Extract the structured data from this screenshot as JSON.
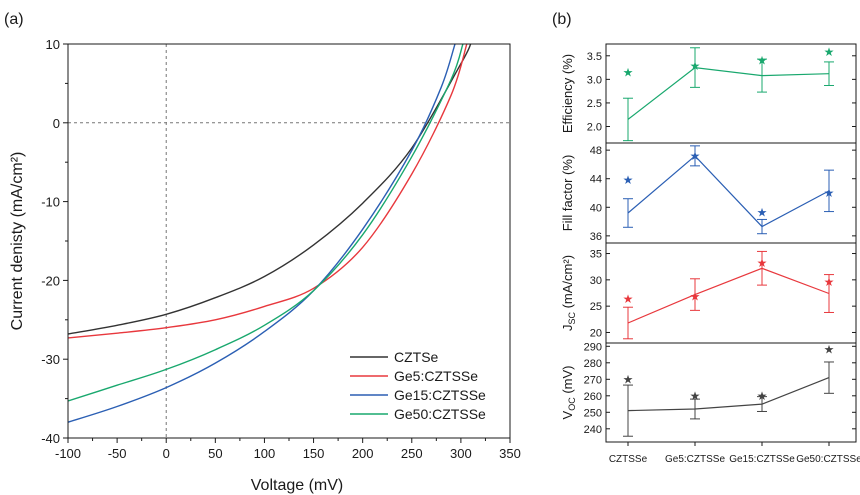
{
  "chart_data": [
    {
      "type": "line",
      "panel_label": "(a)",
      "xlabel": "Voltage (mV)",
      "ylabel": "Current denisty (mA/cm²)",
      "xlim": [
        -100,
        350
      ],
      "ylim": [
        -40,
        10
      ],
      "xticks": [
        -100,
        -50,
        0,
        50,
        100,
        150,
        200,
        250,
        300,
        350
      ],
      "yticks": [
        -40,
        -30,
        -20,
        -10,
        0,
        10
      ],
      "reference_lines": {
        "x": 0,
        "y": 0,
        "style": "dashed"
      },
      "legend_position": "bottom-right",
      "series": [
        {
          "name": "CZTSe",
          "color": "#333333",
          "x": [
            -100,
            -50,
            0,
            50,
            100,
            150,
            200,
            250,
            300,
            310
          ],
          "y": [
            -26.8,
            -25.7,
            -24.3,
            -22.2,
            -19.5,
            -15.5,
            -10.2,
            -3.2,
            7.5,
            10
          ]
        },
        {
          "name": "Ge5:CZTSSe",
          "color": "#e8383d",
          "x": [
            -100,
            -50,
            0,
            50,
            100,
            150,
            200,
            250,
            290,
            306
          ],
          "y": [
            -27.3,
            -26.7,
            -26,
            -25,
            -23.3,
            -21,
            -15.8,
            -6.5,
            3.5,
            10
          ]
        },
        {
          "name": "Ge15:CZTSSe",
          "color": "#2b5fb4",
          "x": [
            -100,
            -50,
            0,
            50,
            100,
            150,
            200,
            250,
            280,
            294
          ],
          "y": [
            -38,
            -36,
            -33.6,
            -30.5,
            -26.5,
            -21.3,
            -13.5,
            -3.5,
            4.5,
            10
          ]
        },
        {
          "name": "Ge50:CZTSSe",
          "color": "#19a86e",
          "x": [
            -100,
            -50,
            0,
            50,
            100,
            150,
            200,
            250,
            290,
            302
          ],
          "y": [
            -35.3,
            -33.3,
            -31.3,
            -28.8,
            -25.7,
            -21.3,
            -14.2,
            -4.3,
            5.5,
            10
          ]
        }
      ]
    },
    {
      "type": "line",
      "panel_label": "(b)",
      "categories": [
        "CZTSSe",
        "Ge5:CZTSSe",
        "Ge15:CZTSSe",
        "Ge50:CZTSSe"
      ],
      "panels": [
        {
          "ylabel": "Efficiency (%)",
          "color": "#19a86e",
          "ylim": [
            1.65,
            3.75
          ],
          "yticks": [
            2.0,
            2.5,
            3.0,
            3.5
          ],
          "tick_labels": [
            "2.0",
            "2.5",
            "3.0",
            "3.5"
          ],
          "mean": [
            2.15,
            3.25,
            3.08,
            3.12
          ],
          "err": [
            0.45,
            0.42,
            0.35,
            0.25
          ],
          "best": [
            3.15,
            3.28,
            3.4,
            3.58
          ]
        },
        {
          "ylabel": "Fill factor (%)",
          "color": "#2b5fb4",
          "ylim": [
            35,
            49
          ],
          "yticks": [
            36,
            40,
            44,
            48
          ],
          "tick_labels": [
            "36",
            "40",
            "44",
            "48"
          ],
          "mean": [
            39.2,
            47.2,
            37.3,
            42.3
          ],
          "err": [
            2,
            1.4,
            1,
            2.9
          ],
          "best": [
            43.8,
            47.2,
            39.3,
            42
          ]
        },
        {
          "ylabel": "J<sub>SC</sub> (mA/cm²)",
          "ylabel_plain": "JSC (mA/cm²)",
          "color": "#e8383d",
          "ylim": [
            18,
            37
          ],
          "yticks": [
            20,
            25,
            30,
            35
          ],
          "tick_labels": [
            "20",
            "25",
            "30",
            "35"
          ],
          "mean": [
            21.8,
            27.2,
            32.2,
            27.4
          ],
          "err": [
            3,
            3,
            3.2,
            3.6
          ],
          "best": [
            26.4,
            26.8,
            33.2,
            29.6
          ]
        },
        {
          "ylabel": "V<sub>OC</sub> (mV)",
          "ylabel_plain": "VOC (mV)",
          "color": "#444444",
          "ylim": [
            232,
            292
          ],
          "yticks": [
            240,
            250,
            260,
            270,
            280,
            290
          ],
          "tick_labels": [
            "240",
            "250",
            "260",
            "270",
            "280",
            "290"
          ],
          "mean": [
            251,
            252,
            255,
            271
          ],
          "err": [
            15.5,
            6,
            4.5,
            9.5
          ],
          "best": [
            270,
            260,
            260,
            288
          ]
        }
      ]
    }
  ]
}
